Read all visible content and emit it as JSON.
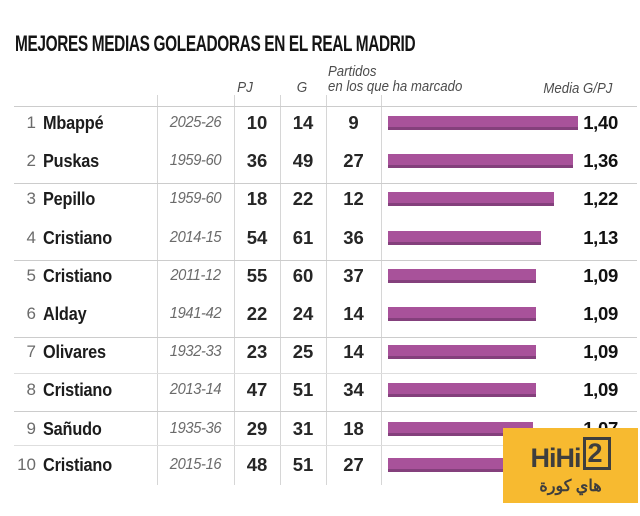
{
  "title": "MEJORES MEDIAS GOLEADORAS EN EL REAL MADRID",
  "header": {
    "pj": "PJ",
    "g": "G",
    "partidos_line1": "Partidos",
    "partidos_line2": "en los que ha marcado",
    "media": "Media G/PJ"
  },
  "chart_data": {
    "type": "bar",
    "orientation": "horizontal",
    "title": "MEJORES MEDIAS GOLEADORAS EN EL REAL MADRID",
    "xlabel": "Media G/PJ",
    "xlim": [
      0,
      1.4
    ],
    "grid": false,
    "bar_color": "#a8529a",
    "bar_edge_color": "#84407c",
    "rows": [
      {
        "rank": "1",
        "player": "Mbappé",
        "season": "2025-26",
        "pj": "10",
        "g": "14",
        "partidos": "9",
        "media": "1,40",
        "media_value": 1.4
      },
      {
        "rank": "2",
        "player": "Puskas",
        "season": "1959-60",
        "pj": "36",
        "g": "49",
        "partidos": "27",
        "media": "1,36",
        "media_value": 1.36
      },
      {
        "rank": "3",
        "player": "Pepillo",
        "season": "1959-60",
        "pj": "18",
        "g": "22",
        "partidos": "12",
        "media": "1,22",
        "media_value": 1.22
      },
      {
        "rank": "4",
        "player": "Cristiano",
        "season": "2014-15",
        "pj": "54",
        "g": "61",
        "partidos": "36",
        "media": "1,13",
        "media_value": 1.13
      },
      {
        "rank": "5",
        "player": "Cristiano",
        "season": "2011-12",
        "pj": "55",
        "g": "60",
        "partidos": "37",
        "media": "1,09",
        "media_value": 1.09
      },
      {
        "rank": "6",
        "player": "Alday",
        "season": "1941-42",
        "pj": "22",
        "g": "24",
        "partidos": "14",
        "media": "1,09",
        "media_value": 1.09
      },
      {
        "rank": "7",
        "player": "Olivares",
        "season": "1932-33",
        "pj": "23",
        "g": "25",
        "partidos": "14",
        "media": "1,09",
        "media_value": 1.09
      },
      {
        "rank": "8",
        "player": "Cristiano",
        "season": "2013-14",
        "pj": "47",
        "g": "51",
        "partidos": "34",
        "media": "1,09",
        "media_value": 1.09
      },
      {
        "rank": "9",
        "player": "Sañudo",
        "season": "1935-36",
        "pj": "29",
        "g": "31",
        "partidos": "18",
        "media": "1,07",
        "media_value": 1.07
      },
      {
        "rank": "10",
        "player": "Cristiano",
        "season": "2015-16",
        "pj": "48",
        "g": "51",
        "partidos": "27",
        "media": "1,06",
        "media_value": 1.06
      }
    ]
  },
  "watermark": {
    "logo_text": "HiHi",
    "logo_number": "2",
    "arabic": "هاي كورة",
    "bg_color": "#f7ba30",
    "text_color": "#3e3e3e"
  }
}
